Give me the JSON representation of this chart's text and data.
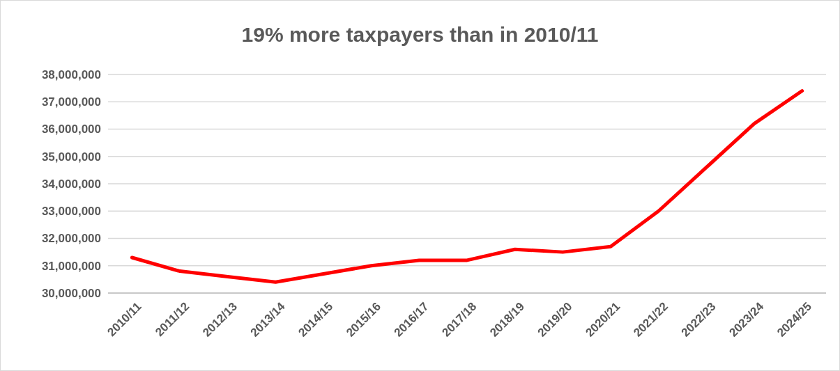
{
  "chart_data": {
    "type": "line",
    "title": "19% more taxpayers than in 2010/11",
    "categories": [
      "2010/11",
      "2011/12",
      "2012/13",
      "2013/14",
      "2014/15",
      "2015/16",
      "2016/17",
      "2017/18",
      "2018/19",
      "2019/20",
      "2020/21",
      "2021/22",
      "2022/23",
      "2023/24",
      "2024/25"
    ],
    "series": [
      {
        "color": "#ff0000",
        "values": [
          31300000,
          30800000,
          30600000,
          30400000,
          30700000,
          31000000,
          31200000,
          31200000,
          31600000,
          31500000,
          31700000,
          33000000,
          34600000,
          36200000,
          37400000
        ]
      }
    ],
    "ylim": [
      30000000,
      38000000
    ],
    "yticks": [
      {
        "value": 30000000,
        "label": "30,000,000"
      },
      {
        "value": 31000000,
        "label": "31,000,000"
      },
      {
        "value": 32000000,
        "label": "32,000,000"
      },
      {
        "value": 33000000,
        "label": "33,000,000"
      },
      {
        "value": 34000000,
        "label": "34,000,000"
      },
      {
        "value": 35000000,
        "label": "35,000,000"
      },
      {
        "value": 36000000,
        "label": "36,000,000"
      },
      {
        "value": 37000000,
        "label": "37,000,000"
      },
      {
        "value": 38000000,
        "label": "38,000,000"
      }
    ],
    "grid": "y",
    "marker": "none",
    "line_style": "solid"
  }
}
